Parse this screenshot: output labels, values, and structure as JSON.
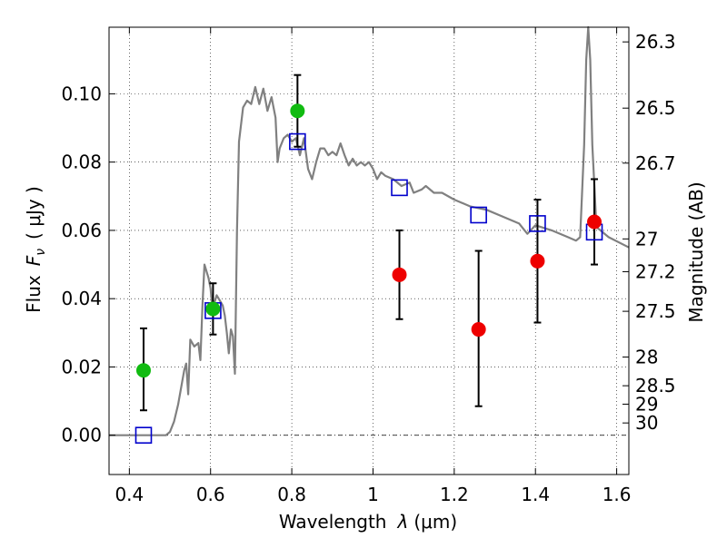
{
  "chart_data": {
    "type": "scatter",
    "xlabel": "Wavelength",
    "xlabel_symbol": "λ",
    "xlabel_unit": "(μm)",
    "ylabel": "Flux",
    "ylabel_symbol": "F",
    "ylabel_symbol_sub": "ν",
    "ylabel_unit": "( μJy )",
    "y2label": "Magnitude (AB)",
    "xlim": [
      0.35,
      1.63
    ],
    "ylim": [
      -0.0115,
      0.1195
    ],
    "grid": true,
    "x_ticks": [
      {
        "value": 0.4,
        "label": "0.4"
      },
      {
        "value": 0.6,
        "label": "0.6"
      },
      {
        "value": 0.8,
        "label": "0.8"
      },
      {
        "value": 1.0,
        "label": "1"
      },
      {
        "value": 1.2,
        "label": "1.2"
      },
      {
        "value": 1.4,
        "label": "1.4"
      },
      {
        "value": 1.6,
        "label": "1.6"
      }
    ],
    "y_ticks": [
      {
        "value": 0.0,
        "label": "0.00"
      },
      {
        "value": 0.02,
        "label": "0.02"
      },
      {
        "value": 0.04,
        "label": "0.04"
      },
      {
        "value": 0.06,
        "label": "0.06"
      },
      {
        "value": 0.08,
        "label": "0.08"
      },
      {
        "value": 0.1,
        "label": "0.10"
      }
    ],
    "mag_ticks": [
      {
        "flux": 0.1152,
        "label": "26.3"
      },
      {
        "flux": 0.0958,
        "label": "26.5"
      },
      {
        "flux": 0.0797,
        "label": "26.7"
      },
      {
        "flux": 0.0575,
        "label": "27"
      },
      {
        "flux": 0.0479,
        "label": "27.2"
      },
      {
        "flux": 0.0363,
        "label": "27.5"
      },
      {
        "flux": 0.0229,
        "label": "28"
      },
      {
        "flux": 0.0145,
        "label": "28.5"
      },
      {
        "flux": 0.0091,
        "label": "29"
      },
      {
        "flux": 0.0036,
        "label": "30"
      }
    ],
    "template_color": "#808080",
    "model_color": "#0000cc",
    "optical_color": "#11bb11",
    "nir_color": "#ee0000",
    "errorbar_color": "#000000",
    "template_sed": [
      [
        0.35,
        0.0
      ],
      [
        0.49,
        0.0
      ],
      [
        0.5,
        0.001
      ],
      [
        0.51,
        0.004
      ],
      [
        0.52,
        0.009
      ],
      [
        0.535,
        0.019
      ],
      [
        0.54,
        0.021
      ],
      [
        0.545,
        0.012
      ],
      [
        0.55,
        0.028
      ],
      [
        0.56,
        0.026
      ],
      [
        0.57,
        0.027
      ],
      [
        0.575,
        0.022
      ],
      [
        0.58,
        0.038
      ],
      [
        0.585,
        0.05
      ],
      [
        0.595,
        0.046
      ],
      [
        0.6,
        0.043
      ],
      [
        0.605,
        0.036
      ],
      [
        0.61,
        0.039
      ],
      [
        0.615,
        0.041
      ],
      [
        0.62,
        0.04
      ],
      [
        0.63,
        0.038
      ],
      [
        0.635,
        0.035
      ],
      [
        0.64,
        0.03
      ],
      [
        0.645,
        0.024
      ],
      [
        0.65,
        0.031
      ],
      [
        0.655,
        0.029
      ],
      [
        0.66,
        0.018
      ],
      [
        0.665,
        0.06
      ],
      [
        0.67,
        0.086
      ],
      [
        0.68,
        0.096
      ],
      [
        0.69,
        0.098
      ],
      [
        0.7,
        0.097
      ],
      [
        0.71,
        0.102
      ],
      [
        0.72,
        0.097
      ],
      [
        0.73,
        0.1015
      ],
      [
        0.74,
        0.095
      ],
      [
        0.75,
        0.099
      ],
      [
        0.76,
        0.093
      ],
      [
        0.765,
        0.08
      ],
      [
        0.77,
        0.084
      ],
      [
        0.78,
        0.087
      ],
      [
        0.79,
        0.088
      ],
      [
        0.8,
        0.086
      ],
      [
        0.81,
        0.087
      ],
      [
        0.82,
        0.082
      ],
      [
        0.83,
        0.087
      ],
      [
        0.84,
        0.078
      ],
      [
        0.85,
        0.075
      ],
      [
        0.86,
        0.08
      ],
      [
        0.87,
        0.084
      ],
      [
        0.88,
        0.084
      ],
      [
        0.89,
        0.082
      ],
      [
        0.9,
        0.083
      ],
      [
        0.91,
        0.082
      ],
      [
        0.92,
        0.0855
      ],
      [
        0.93,
        0.082
      ],
      [
        0.94,
        0.079
      ],
      [
        0.95,
        0.081
      ],
      [
        0.96,
        0.079
      ],
      [
        0.97,
        0.08
      ],
      [
        0.98,
        0.079
      ],
      [
        0.99,
        0.08
      ],
      [
        1.0,
        0.078
      ],
      [
        1.01,
        0.075
      ],
      [
        1.02,
        0.077
      ],
      [
        1.03,
        0.076
      ],
      [
        1.05,
        0.075
      ],
      [
        1.07,
        0.073
      ],
      [
        1.09,
        0.074
      ],
      [
        1.1,
        0.071
      ],
      [
        1.12,
        0.072
      ],
      [
        1.13,
        0.073
      ],
      [
        1.15,
        0.071
      ],
      [
        1.17,
        0.071
      ],
      [
        1.2,
        0.069
      ],
      [
        1.24,
        0.067
      ],
      [
        1.28,
        0.066
      ],
      [
        1.32,
        0.064
      ],
      [
        1.36,
        0.062
      ],
      [
        1.38,
        0.059
      ],
      [
        1.4,
        0.0615
      ],
      [
        1.44,
        0.06
      ],
      [
        1.48,
        0.058
      ],
      [
        1.5,
        0.057
      ],
      [
        1.51,
        0.058
      ],
      [
        1.52,
        0.085
      ],
      [
        1.525,
        0.11
      ],
      [
        1.53,
        0.12
      ],
      [
        1.535,
        0.11
      ],
      [
        1.54,
        0.085
      ],
      [
        1.55,
        0.061
      ],
      [
        1.58,
        0.058
      ],
      [
        1.63,
        0.055
      ]
    ],
    "model_points": [
      {
        "x": 0.435,
        "y": 0.0
      },
      {
        "x": 0.606,
        "y": 0.0365
      },
      {
        "x": 0.814,
        "y": 0.086
      },
      {
        "x": 1.065,
        "y": 0.0725
      },
      {
        "x": 1.26,
        "y": 0.0645
      },
      {
        "x": 1.405,
        "y": 0.062
      },
      {
        "x": 1.545,
        "y": 0.0595
      }
    ],
    "optical_points": [
      {
        "x": 0.435,
        "y": 0.019,
        "yerr_low": 0.0117,
        "yerr_high": 0.0123
      },
      {
        "x": 0.606,
        "y": 0.037,
        "yerr_low": 0.0075,
        "yerr_high": 0.0075
      },
      {
        "x": 0.814,
        "y": 0.095,
        "yerr_low": 0.0105,
        "yerr_high": 0.0105
      }
    ],
    "nir_points": [
      {
        "x": 1.065,
        "y": 0.047,
        "yerr_low": 0.013,
        "yerr_high": 0.013
      },
      {
        "x": 1.26,
        "y": 0.031,
        "yerr_low": 0.0225,
        "yerr_high": 0.023
      },
      {
        "x": 1.405,
        "y": 0.051,
        "yerr_low": 0.018,
        "yerr_high": 0.018
      },
      {
        "x": 1.545,
        "y": 0.0625,
        "yerr_low": 0.0125,
        "yerr_high": 0.0125
      }
    ]
  }
}
